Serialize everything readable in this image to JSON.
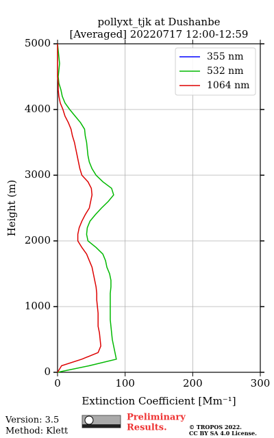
{
  "chart_data": {
    "type": "line",
    "title": "pollyxt_tjk at Dushanbe",
    "subtitle": "[Averaged] 20220717 12:00-12:59",
    "x_label": "Extinction Coefficient [Mm⁻¹]",
    "y_label": "Height (m)",
    "heights": [
      0,
      100,
      200,
      300,
      400,
      500,
      600,
      700,
      800,
      900,
      1000,
      1100,
      1200,
      1300,
      1400,
      1500,
      1600,
      1700,
      1800,
      1900,
      2000,
      2100,
      2200,
      2300,
      2400,
      2500,
      2600,
      2700,
      2800,
      2900,
      3000,
      3100,
      3200,
      3300,
      3400,
      3500,
      3600,
      3700,
      3800,
      3900,
      4000,
      4100,
      4200,
      4300,
      4400,
      4500,
      4600,
      4700,
      4800,
      4900,
      5000
    ],
    "series": [
      {
        "name": "355 nm",
        "color": "#0000ff",
        "values": [
          null,
          null,
          null,
          null,
          null,
          null,
          null,
          null,
          null,
          null,
          null,
          null,
          null,
          null,
          null,
          null,
          null,
          null,
          null,
          null,
          null,
          null,
          null,
          null,
          null,
          null,
          null,
          null,
          null,
          null,
          null,
          null,
          null,
          null,
          null,
          null,
          null,
          null,
          null,
          null,
          null,
          null,
          null,
          null,
          null,
          null,
          null,
          null,
          null,
          null,
          null
        ]
      },
      {
        "name": "532 nm",
        "color": "#00b800",
        "values": [
          0,
          47,
          87,
          85,
          83,
          81,
          80,
          79,
          78,
          78,
          78,
          78,
          78,
          79,
          79,
          77,
          73,
          71,
          67,
          57,
          45,
          43,
          44,
          48,
          56,
          65,
          75,
          83,
          80,
          67,
          57,
          51,
          47,
          45,
          44,
          43,
          41,
          40,
          34,
          26,
          18,
          11,
          7,
          5,
          2,
          1,
          2,
          3,
          2,
          1,
          0
        ]
      },
      {
        "name": "1064 nm",
        "color": "#dd0000",
        "values": [
          0,
          6,
          36,
          60,
          64,
          63,
          62,
          60,
          60,
          60,
          59,
          58,
          58,
          57,
          55,
          53,
          51,
          47,
          43,
          36,
          30,
          30,
          32,
          36,
          41,
          47,
          49,
          51,
          50,
          45,
          36,
          33,
          31,
          29,
          27,
          25,
          22,
          20,
          16,
          11,
          8,
          4,
          2,
          1,
          1,
          0,
          0,
          0,
          0,
          0,
          0
        ]
      }
    ],
    "xlim": [
      0,
      300
    ],
    "xticks": [
      0,
      100,
      200,
      300
    ],
    "ylim": [
      0,
      5000
    ],
    "yticks": [
      0,
      1000,
      2000,
      3000,
      4000,
      5000
    ],
    "grid": true,
    "legend": "upper right",
    "footer": {
      "version": "Version: 3.5",
      "method": "Method: Klett",
      "preliminary": [
        "Preliminary",
        "Results."
      ],
      "copyright": [
        "© TROPOS 2022.",
        "CC BY SA 4.0 License."
      ]
    }
  }
}
